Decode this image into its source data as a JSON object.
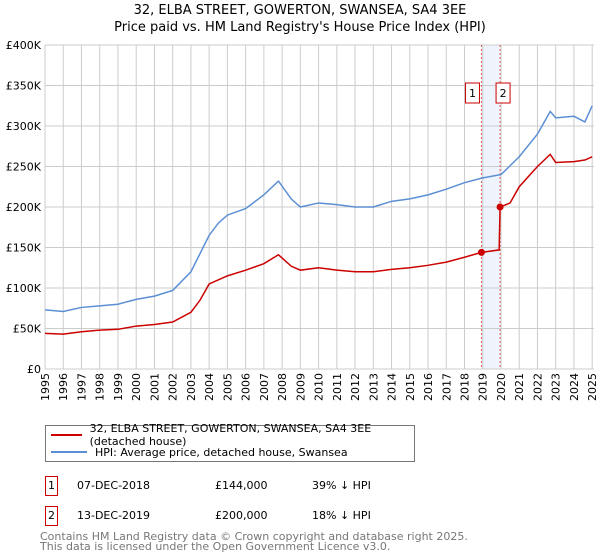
{
  "chart_data": {
    "type": "line",
    "title": "32, ELBA STREET, GOWERTON, SWANSEA, SA4 3EE",
    "subtitle": "Price paid vs. HM Land Registry's House Price Index (HPI)",
    "xlim": [
      1995,
      2025.1
    ],
    "ylim": [
      0,
      400000
    ],
    "y_ticks": [
      0,
      50000,
      100000,
      150000,
      200000,
      250000,
      300000,
      350000,
      400000
    ],
    "y_tick_labels": [
      "£0",
      "£50K",
      "£100K",
      "£150K",
      "£200K",
      "£250K",
      "£300K",
      "£350K",
      "£400K"
    ],
    "x_ticks": [
      1995,
      1996,
      1997,
      1998,
      1999,
      2000,
      2001,
      2002,
      2003,
      2004,
      2005,
      2006,
      2007,
      2008,
      2009,
      2010,
      2011,
      2012,
      2013,
      2014,
      2015,
      2016,
      2017,
      2018,
      2019,
      2020,
      2021,
      2022,
      2023,
      2024,
      2025
    ],
    "grid": true,
    "series": [
      {
        "name": "32, ELBA STREET, GOWERTON, SWANSEA, SA4 3EE (detached house)",
        "color": "#cc0000",
        "x": [
          1995,
          1996,
          1997,
          1998,
          1999,
          2000,
          2001,
          2002,
          2003,
          2003.5,
          2004,
          2005,
          2006,
          2007,
          2007.8,
          2008.5,
          2009,
          2010,
          2011,
          2012,
          2013,
          2014,
          2015,
          2016,
          2017,
          2018,
          2018.93,
          2019.9,
          2019.95,
          2020.5,
          2021,
          2022,
          2022.7,
          2023,
          2024,
          2024.6,
          2025
        ],
        "y": [
          44000,
          43000,
          46000,
          48000,
          49000,
          53000,
          55000,
          58000,
          70000,
          85000,
          105000,
          115000,
          122000,
          130000,
          141000,
          127000,
          122000,
          125000,
          122000,
          120000,
          120000,
          123000,
          125000,
          128000,
          132000,
          138000,
          144000,
          147000,
          200000,
          205000,
          225000,
          250000,
          265000,
          255000,
          256000,
          258000,
          262000
        ]
      },
      {
        "name": "HPI: Average price, detached house, Swansea",
        "color": "#5b8fd4",
        "x": [
          1995,
          1996,
          1997,
          1998,
          1999,
          2000,
          2001,
          2002,
          2003,
          2004,
          2004.5,
          2005,
          2006,
          2007,
          2007.8,
          2008.5,
          2009,
          2010,
          2011,
          2012,
          2013,
          2014,
          2015,
          2016,
          2017,
          2018,
          2019,
          2020,
          2021,
          2022,
          2022.7,
          2023,
          2024,
          2024.6,
          2025
        ],
        "y": [
          73000,
          71000,
          76000,
          78000,
          80000,
          86000,
          90000,
          97000,
          120000,
          165000,
          180000,
          190000,
          198000,
          215000,
          232000,
          210000,
          200000,
          205000,
          203000,
          200000,
          200000,
          207000,
          210000,
          215000,
          222000,
          230000,
          236000,
          240000,
          262000,
          290000,
          318000,
          310000,
          312000,
          305000,
          325000
        ]
      }
    ],
    "sales": [
      {
        "label": "1",
        "x": 2018.93,
        "price": 144000,
        "date": "07-DEC-2018",
        "price_text": "£144,000",
        "hpi_text": "39% ↓ HPI"
      },
      {
        "label": "2",
        "x": 2019.95,
        "price": 200000,
        "date": "13-DEC-2019",
        "price_text": "£200,000",
        "hpi_text": "18% ↓ HPI"
      }
    ]
  },
  "footer": {
    "line1": "Contains HM Land Registry data © Crown copyright and database right 2025.",
    "line2": "This data is licensed under the Open Government Licence v3.0."
  }
}
